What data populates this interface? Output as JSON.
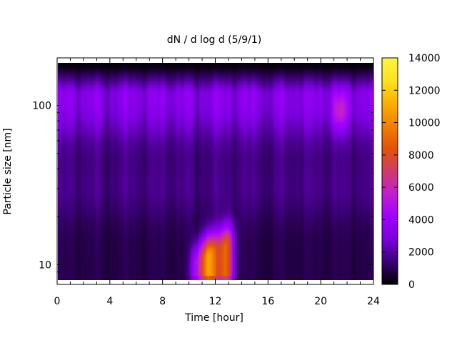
{
  "chart_data": {
    "type": "heatmap",
    "title": "dN / d log d (5/9/1)",
    "xlabel": "Time [hour]",
    "ylabel": "Particle size [nm]",
    "x_ticks": [
      0,
      4,
      8,
      12,
      16,
      20,
      24
    ],
    "xlim": [
      0,
      24
    ],
    "y_scale": "log",
    "ylim": [
      8,
      185
    ],
    "y_tick_labels": [
      {
        "value": 10,
        "label": "10"
      },
      {
        "value": 100,
        "label": "100"
      }
    ],
    "colorbar": {
      "range": [
        0,
        14000
      ],
      "ticks": [
        0,
        2000,
        4000,
        6000,
        8000,
        10000,
        12000,
        14000
      ],
      "colormap": [
        "#000000",
        "#3a0073",
        "#7a00dc",
        "#a000ff",
        "#c01fd0",
        "#cf3c6a",
        "#e25306",
        "#f27f00",
        "#fab000",
        "#ffe120",
        "#fff640"
      ]
    },
    "grid": false,
    "legend": "colorbar-right",
    "summary": {
      "background_level": 2500,
      "peak_event": {
        "time_range_hour": [
          9.5,
          14
        ],
        "size_range_nm": [
          8.5,
          20
        ],
        "max_value": 11500
      },
      "upper_band_peak_nm": 110,
      "secondary_feature": {
        "time_hour": 21.5,
        "size_nm": 90,
        "value": 5500
      }
    }
  }
}
